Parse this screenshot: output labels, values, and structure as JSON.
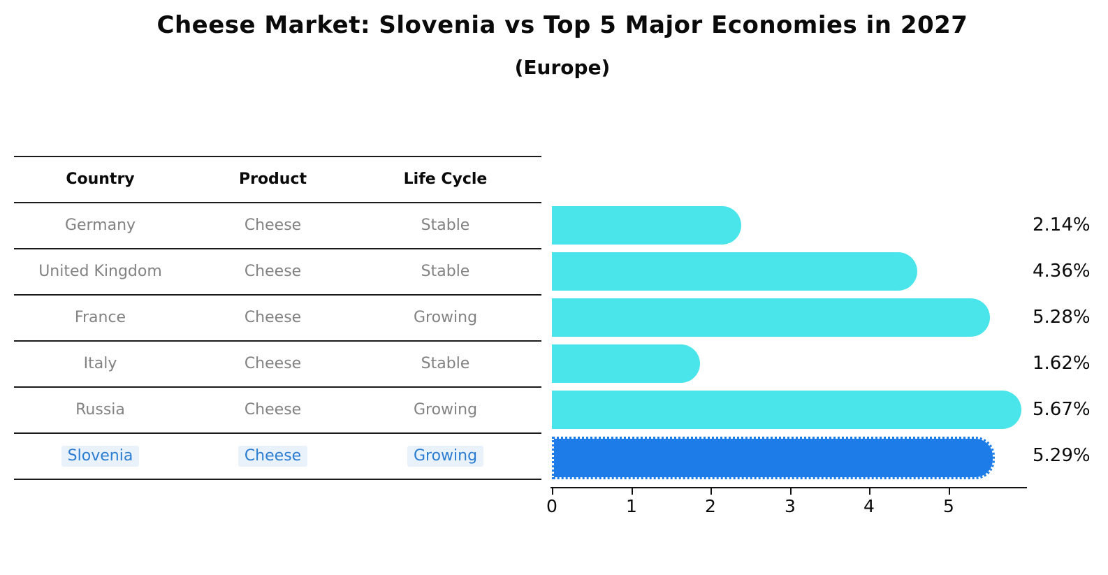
{
  "title": "Cheese Market: Slovenia vs Top 5 Major Economies in 2027",
  "subtitle": "(Europe)",
  "table": {
    "columns": [
      "Country",
      "Product",
      "Life Cycle"
    ],
    "rows": [
      {
        "country": "Germany",
        "product": "Cheese",
        "life_cycle": "Stable",
        "highlight": false
      },
      {
        "country": "United Kingdom",
        "product": "Cheese",
        "life_cycle": "Stable",
        "highlight": false
      },
      {
        "country": "France",
        "product": "Cheese",
        "life_cycle": "Growing",
        "highlight": false
      },
      {
        "country": "Italy",
        "product": "Cheese",
        "life_cycle": "Stable",
        "highlight": false
      },
      {
        "country": "Russia",
        "product": "Cheese",
        "life_cycle": "Growing",
        "highlight": false
      },
      {
        "country": "Slovenia",
        "product": "Cheese",
        "life_cycle": "Growing",
        "highlight": true
      }
    ]
  },
  "chart_data": {
    "type": "bar",
    "orientation": "horizontal",
    "title": "Cheese Market: Slovenia vs Top 5 Major Economies in 2027",
    "subtitle": "(Europe)",
    "categories": [
      "Germany",
      "United Kingdom",
      "France",
      "Italy",
      "Russia",
      "Slovenia"
    ],
    "values": [
      2.14,
      4.36,
      5.28,
      1.62,
      5.67,
      5.29
    ],
    "value_labels": [
      "2.14%",
      "4.36%",
      "5.28%",
      "1.62%",
      "5.67%",
      "5.29%"
    ],
    "unit": "%",
    "xlabel": "",
    "ylabel": "",
    "xlim": [
      0,
      6
    ],
    "x_ticks": [
      "0",
      "1",
      "2",
      "3",
      "4",
      "5"
    ],
    "grid": false,
    "legend": false,
    "highlight_index": 5,
    "bar_color": "#4AE5EA",
    "highlight_bar_color": "#1E7CE8",
    "highlight_text_color": "#2B7DD2"
  }
}
